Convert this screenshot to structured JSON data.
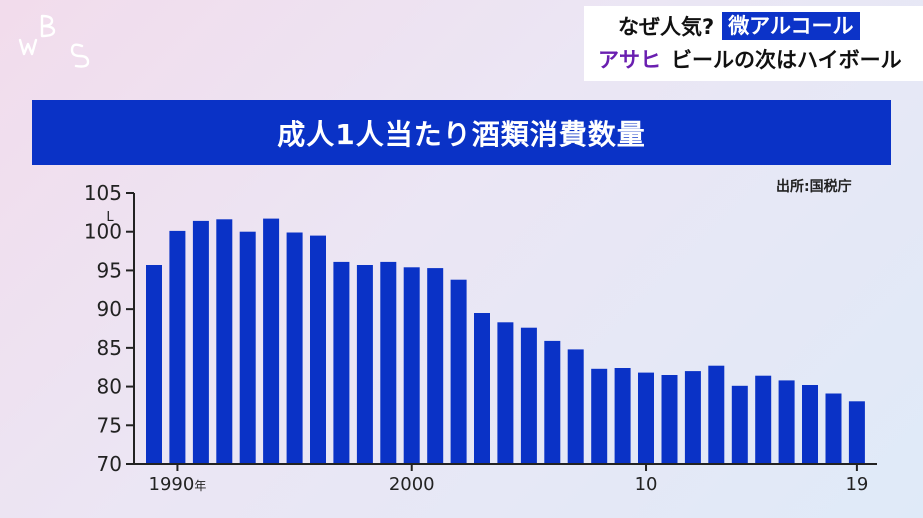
{
  "logo": {
    "text": "WBS",
    "color": "#ffffff"
  },
  "caption": {
    "line1_prefix": "なぜ人気?",
    "line1_tag": "微アルコール",
    "line2_brand": "アサヒ",
    "line2_rest": "ビールの次はハイボール",
    "tag_color": "#0c33c8",
    "brand_color": "#6a1fb0"
  },
  "title": "成人1人当たり酒類消費数量",
  "source": "出所:国税庁",
  "chart_data": {
    "type": "bar",
    "title": "成人1人当たり酒類消費数量",
    "ylabel": "L",
    "xlabel": "",
    "ylim": [
      70,
      105
    ],
    "yticks": [
      70,
      75,
      80,
      85,
      90,
      95,
      100,
      105
    ],
    "bar_color": "#0a32c6",
    "categories": [
      1989,
      1990,
      1991,
      1992,
      1993,
      1994,
      1995,
      1996,
      1997,
      1998,
      1999,
      2000,
      2001,
      2002,
      2003,
      2004,
      2005,
      2006,
      2007,
      2008,
      2009,
      2010,
      2011,
      2012,
      2013,
      2014,
      2015,
      2016,
      2017,
      2018,
      2019
    ],
    "values": [
      95.7,
      100.1,
      101.4,
      101.6,
      100.0,
      101.7,
      99.9,
      99.5,
      96.1,
      95.7,
      96.1,
      95.4,
      95.3,
      93.8,
      89.5,
      88.3,
      87.6,
      85.9,
      84.8,
      82.3,
      82.4,
      81.8,
      81.5,
      82.0,
      82.7,
      80.1,
      81.4,
      80.8,
      80.2,
      79.1,
      78.1
    ],
    "x_tick_labels": [
      {
        "year": 1990,
        "text": "1990",
        "suffix": "年"
      },
      {
        "year": 2000,
        "text": "2000",
        "suffix": ""
      },
      {
        "year": 2010,
        "text": "10",
        "suffix": ""
      },
      {
        "year": 2019,
        "text": "19",
        "suffix": ""
      }
    ],
    "grid": false
  }
}
